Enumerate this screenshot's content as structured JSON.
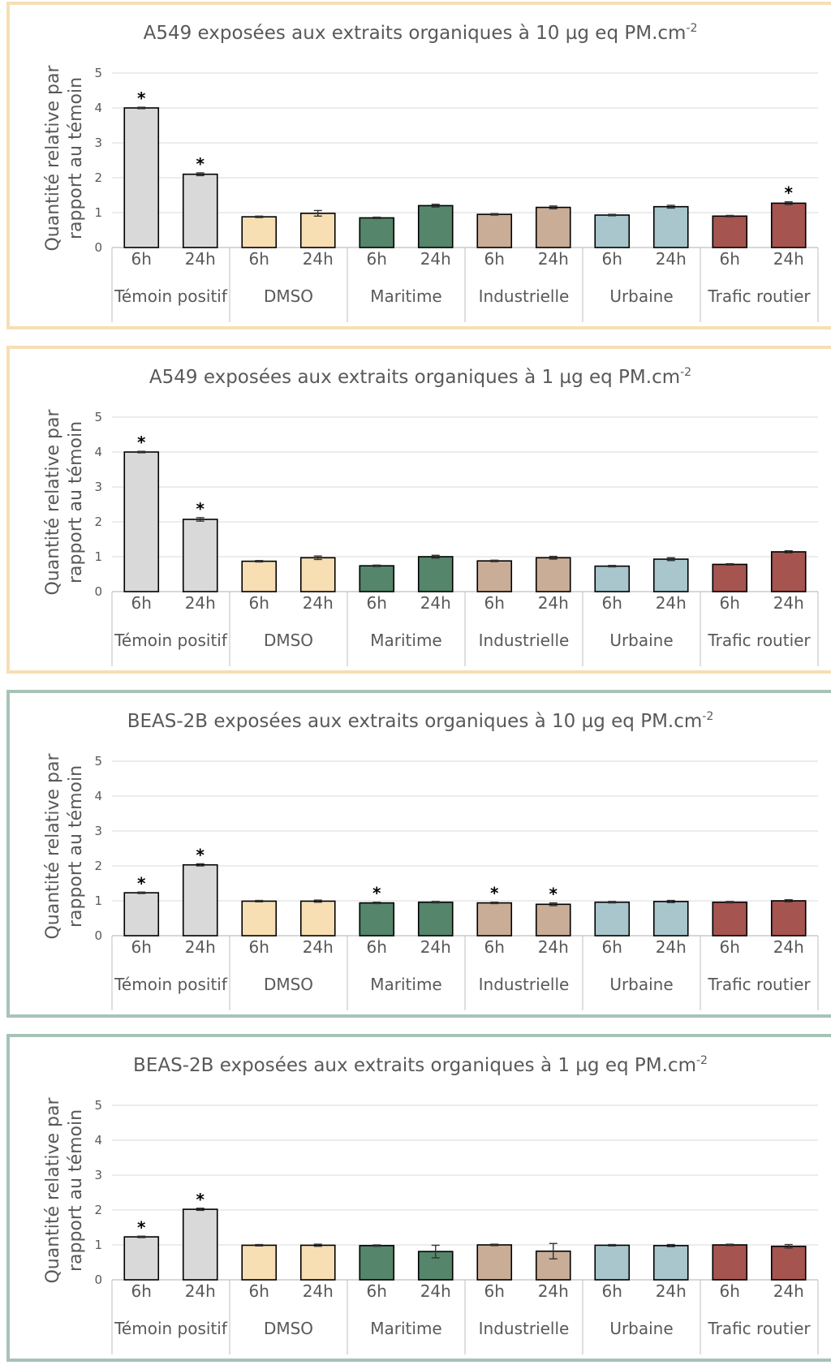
{
  "colors": {
    "frame_a549": "#f6dfb4",
    "frame_beas": "#a6c4b6",
    "gridline": "#d9d9d9",
    "axis": "#bfbfbf",
    "bar_outline": "#000000",
    "Témoin positif": "#d9d9d9",
    "DMSO": "#f7deb3",
    "Maritime": "#55856a",
    "Industrielle": "#c9ad97",
    "Urbaine": "#a8c6cc",
    "Trafic routier": "#a55450"
  },
  "chart_data": [
    {
      "type": "bar",
      "title": "A549 exposées aux extraits organiques à 10 µg eq PM.cm",
      "title_sup": "-2",
      "ylabel_line1": "Quantité relative par",
      "ylabel_line2": "rapport au témoin",
      "ylim": [
        0,
        5
      ],
      "yticks": [
        "0",
        "1",
        "2",
        "3",
        "4",
        "5"
      ],
      "grid": true,
      "groups": [
        "Témoin positif",
        "DMSO",
        "Maritime",
        "Industrielle",
        "Urbaine",
        "Trafic routier"
      ],
      "timepoints": [
        "6h",
        "24h"
      ],
      "values": [
        4.0,
        2.1,
        0.88,
        0.98,
        0.85,
        1.2,
        0.95,
        1.15,
        0.93,
        1.17,
        0.9,
        1.27
      ],
      "errors": [
        0.02,
        0.04,
        0.02,
        0.08,
        0.02,
        0.04,
        0.02,
        0.04,
        0.02,
        0.04,
        0.02,
        0.04
      ],
      "significant": [
        true,
        true,
        false,
        false,
        false,
        false,
        false,
        false,
        false,
        false,
        false,
        true
      ],
      "star": "*"
    },
    {
      "type": "bar",
      "title": "A549 exposées aux extraits organiques à 1 µg eq PM.cm",
      "title_sup": "-2",
      "ylabel_line1": "Quantité relative par",
      "ylabel_line2": "rapport au témoin",
      "ylim": [
        0,
        5
      ],
      "yticks": [
        "0",
        "1",
        "2",
        "3",
        "4",
        "5"
      ],
      "grid": true,
      "groups": [
        "Témoin positif",
        "DMSO",
        "Maritime",
        "Industrielle",
        "Urbaine",
        "Trafic routier"
      ],
      "timepoints": [
        "6h",
        "24h"
      ],
      "values": [
        4.0,
        2.07,
        0.87,
        0.97,
        0.74,
        1.0,
        0.88,
        0.97,
        0.73,
        0.93,
        0.78,
        1.14
      ],
      "errors": [
        0.02,
        0.05,
        0.02,
        0.05,
        0.02,
        0.04,
        0.02,
        0.04,
        0.02,
        0.04,
        0.02,
        0.03
      ],
      "significant": [
        true,
        true,
        false,
        false,
        false,
        false,
        false,
        false,
        false,
        false,
        false,
        false
      ],
      "star": "*"
    },
    {
      "type": "bar",
      "title": "BEAS-2B exposées aux extraits organiques à 10 µg eq  PM.cm",
      "title_sup": "-2",
      "ylabel_line1": "Quantité relative par",
      "ylabel_line2": "rapport au témoin",
      "ylim": [
        0,
        5
      ],
      "yticks": [
        "0",
        "1",
        "2",
        "3",
        "4",
        "5"
      ],
      "grid": true,
      "groups": [
        "Témoin positif",
        "DMSO",
        "Maritime",
        "Industrielle",
        "Urbaine",
        "Trafic routier"
      ],
      "timepoints": [
        "6h",
        "24h"
      ],
      "values": [
        1.23,
        2.03,
        0.99,
        0.99,
        0.94,
        0.96,
        0.94,
        0.9,
        0.96,
        0.98,
        0.96,
        1.0
      ],
      "errors": [
        0.02,
        0.03,
        0.02,
        0.03,
        0.02,
        0.02,
        0.02,
        0.04,
        0.02,
        0.03,
        0.02,
        0.03
      ],
      "significant": [
        true,
        true,
        false,
        false,
        true,
        false,
        true,
        true,
        false,
        false,
        false,
        false
      ],
      "star": "*"
    },
    {
      "type": "bar",
      "title": "BEAS-2B exposées aux extraits organiques à 1 µg eq PM.cm",
      "title_sup": "-2",
      "ylabel_line1": "Quantité relative par",
      "ylabel_line2": "rapport au témoin",
      "ylim": [
        0,
        5
      ],
      "yticks": [
        "0",
        "1",
        "2",
        "3",
        "4",
        "5"
      ],
      "grid": true,
      "groups": [
        "Témoin positif",
        "DMSO",
        "Maritime",
        "Industrielle",
        "Urbaine",
        "Trafic routier"
      ],
      "timepoints": [
        "6h",
        "24h"
      ],
      "values": [
        1.23,
        2.02,
        0.99,
        0.99,
        0.98,
        0.81,
        1.0,
        0.82,
        0.99,
        0.98,
        1.0,
        0.96
      ],
      "errors": [
        0.02,
        0.03,
        0.02,
        0.03,
        0.02,
        0.18,
        0.02,
        0.22,
        0.02,
        0.03,
        0.02,
        0.05
      ],
      "significant": [
        true,
        true,
        false,
        false,
        false,
        false,
        false,
        false,
        false,
        false,
        false,
        false
      ],
      "star": "*"
    }
  ]
}
